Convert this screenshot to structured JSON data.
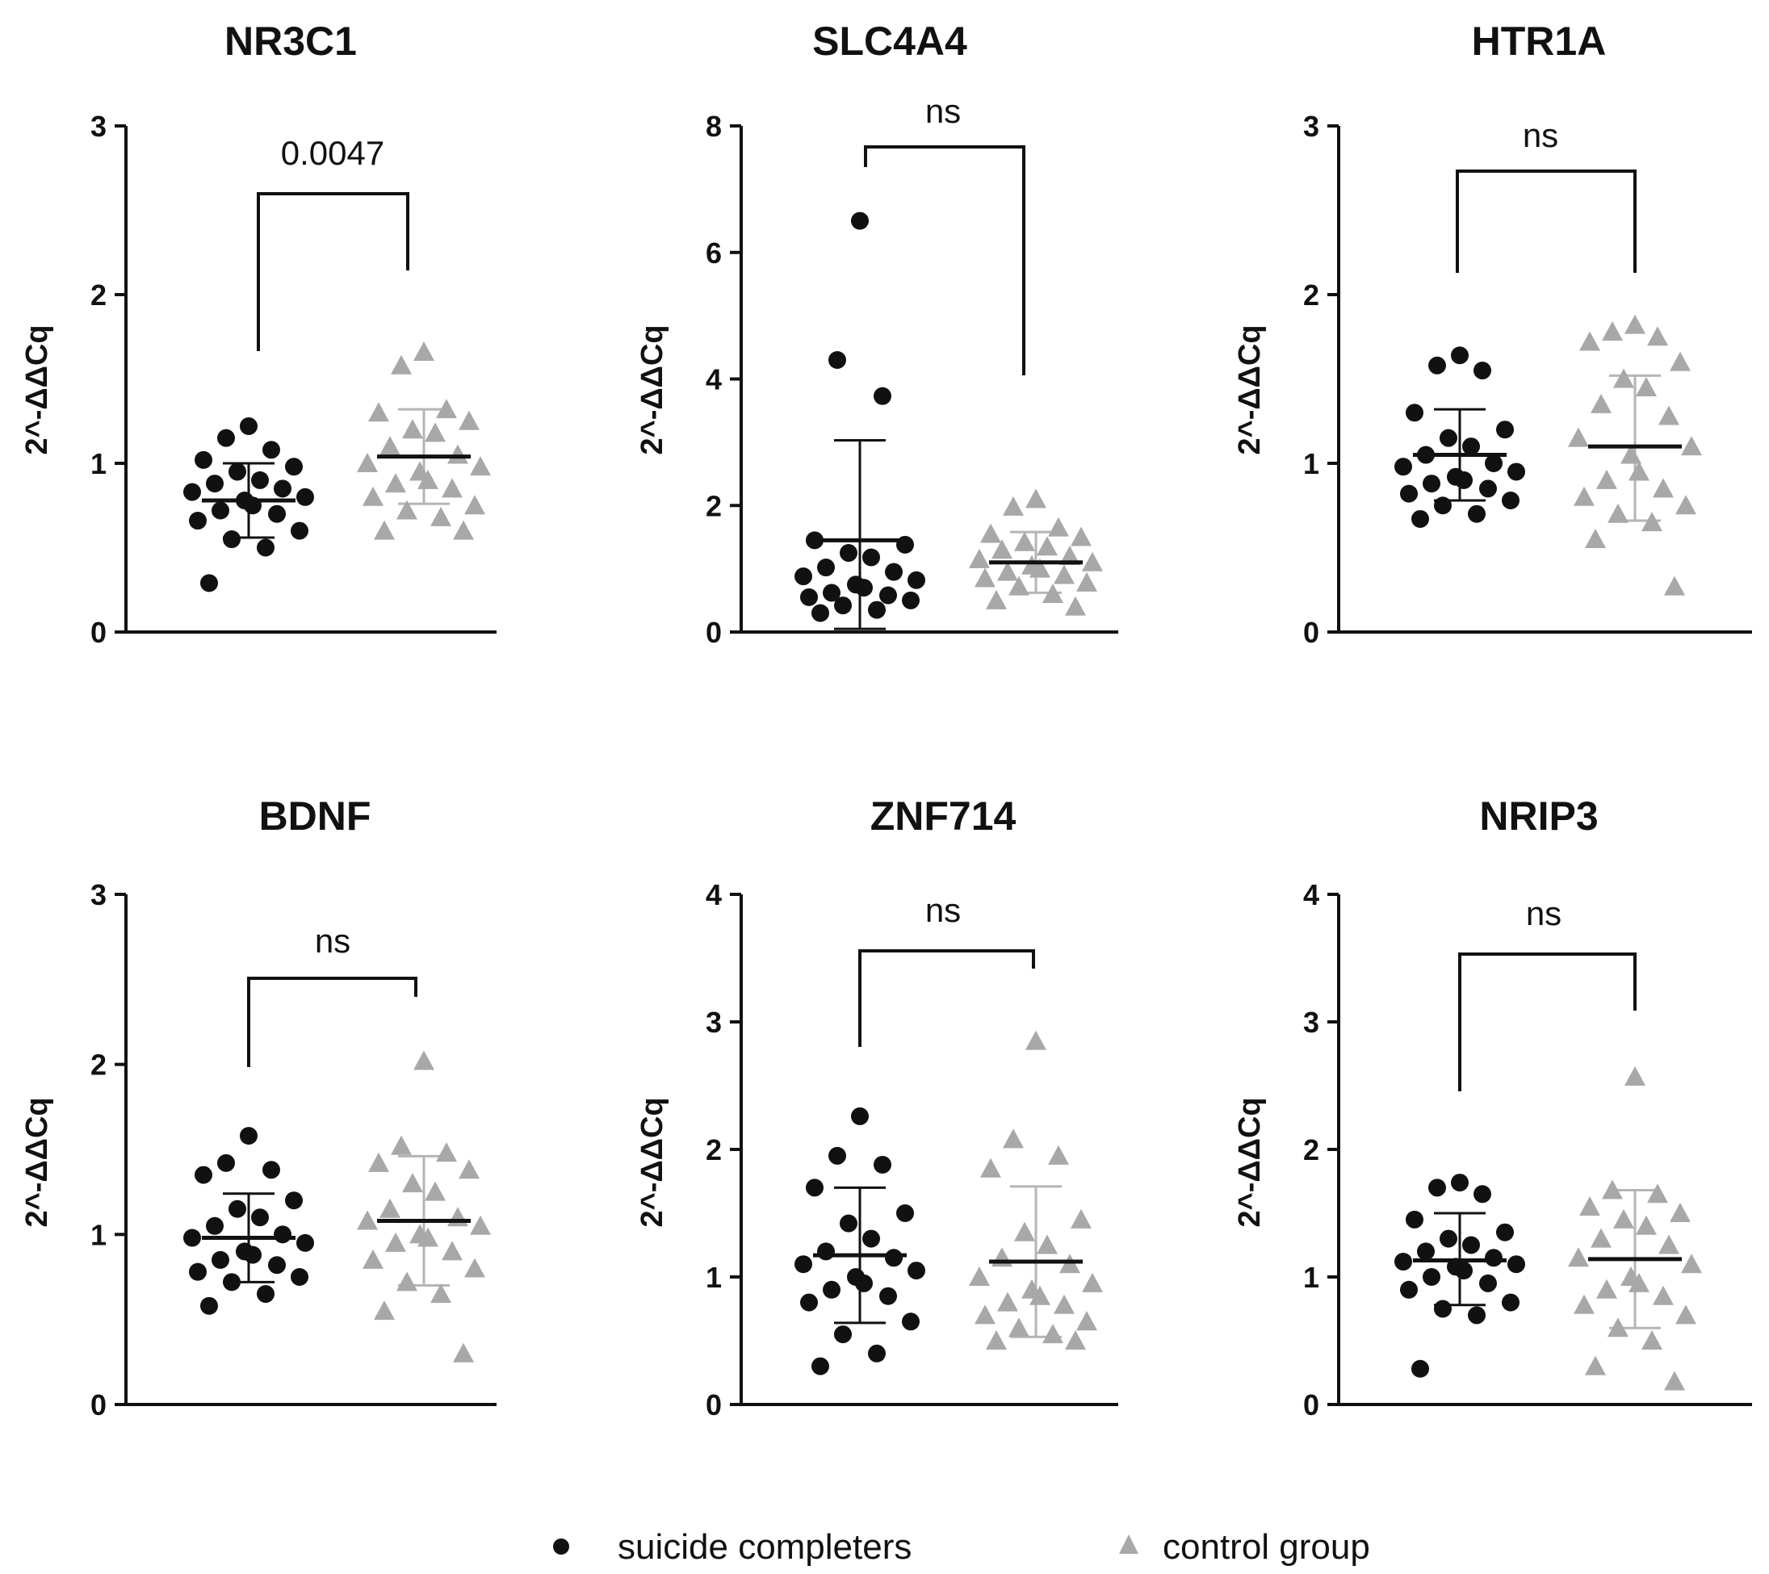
{
  "colors": {
    "suicide": "#111111",
    "control": "#a8a8a8",
    "axis": "#111111"
  },
  "legend": [
    {
      "label": "suicide completers",
      "marker": "circle",
      "color": "#111111"
    },
    {
      "label": "control group",
      "marker": "triangle",
      "color": "#a8a8a8"
    }
  ],
  "chart_data": [
    {
      "type": "scatter",
      "title": "NR3C1",
      "ylabel": "2^-ΔΔCq",
      "ylim": [
        0,
        3
      ],
      "yticks": [
        0,
        1,
        2,
        3
      ],
      "significance": "0.0047",
      "series": [
        {
          "name": "suicide completers",
          "mean": 0.78,
          "sd_low": 0.56,
          "sd_high": 1.0,
          "values": [
            1.22,
            1.15,
            1.08,
            1.02,
            0.98,
            0.95,
            0.9,
            0.88,
            0.85,
            0.83,
            0.8,
            0.78,
            0.75,
            0.72,
            0.7,
            0.66,
            0.6,
            0.55,
            0.5,
            0.29
          ]
        },
        {
          "name": "control group",
          "mean": 1.04,
          "sd_low": 0.76,
          "sd_high": 1.32,
          "values": [
            1.66,
            1.58,
            1.32,
            1.3,
            1.25,
            1.2,
            1.18,
            1.1,
            1.05,
            1.0,
            0.98,
            0.95,
            0.9,
            0.88,
            0.85,
            0.8,
            0.75,
            0.72,
            0.68,
            0.6,
            0.6
          ]
        }
      ]
    },
    {
      "type": "scatter",
      "title": "SLC4A4",
      "ylabel": "2^-ΔΔCq",
      "ylim": [
        0,
        8
      ],
      "yticks": [
        0,
        2,
        4,
        6,
        8
      ],
      "significance": "ns",
      "series": [
        {
          "name": "suicide completers",
          "mean": 1.45,
          "sd_low": 0.05,
          "sd_high": 3.03,
          "values": [
            6.5,
            4.3,
            3.73,
            1.45,
            1.38,
            1.25,
            1.18,
            1.02,
            0.95,
            0.88,
            0.82,
            0.75,
            0.7,
            0.62,
            0.58,
            0.55,
            0.5,
            0.42,
            0.35,
            0.3
          ]
        },
        {
          "name": "control group",
          "mean": 1.1,
          "sd_low": 0.62,
          "sd_high": 1.58,
          "values": [
            2.1,
            1.98,
            1.65,
            1.55,
            1.5,
            1.42,
            1.35,
            1.3,
            1.2,
            1.15,
            1.1,
            1.05,
            1.0,
            0.95,
            0.9,
            0.85,
            0.78,
            0.72,
            0.6,
            0.5,
            0.4
          ]
        }
      ]
    },
    {
      "type": "scatter",
      "title": "HTR1A",
      "ylabel": "2^-ΔΔCq",
      "ylim": [
        0,
        3
      ],
      "yticks": [
        0,
        1,
        2,
        3
      ],
      "significance": "ns",
      "series": [
        {
          "name": "suicide completers",
          "mean": 1.05,
          "sd_low": 0.78,
          "sd_high": 1.32,
          "values": [
            1.64,
            1.58,
            1.55,
            1.3,
            1.2,
            1.15,
            1.1,
            1.05,
            1.0,
            0.98,
            0.95,
            0.92,
            0.9,
            0.88,
            0.85,
            0.82,
            0.78,
            0.75,
            0.7,
            0.67
          ]
        },
        {
          "name": "control group",
          "mean": 1.1,
          "sd_low": 0.66,
          "sd_high": 1.52,
          "values": [
            1.82,
            1.78,
            1.75,
            1.72,
            1.6,
            1.5,
            1.45,
            1.35,
            1.28,
            1.15,
            1.1,
            1.05,
            0.95,
            0.9,
            0.85,
            0.8,
            0.75,
            0.7,
            0.65,
            0.55,
            0.27
          ]
        }
      ]
    },
    {
      "type": "scatter",
      "title": "BDNF",
      "ylabel": "2^-ΔΔCq",
      "ylim": [
        0,
        3
      ],
      "yticks": [
        0,
        1,
        2,
        3
      ],
      "significance": "ns",
      "series": [
        {
          "name": "suicide completers",
          "mean": 0.98,
          "sd_low": 0.72,
          "sd_high": 1.24,
          "values": [
            1.58,
            1.42,
            1.38,
            1.35,
            1.2,
            1.15,
            1.1,
            1.05,
            1.0,
            0.98,
            0.95,
            0.9,
            0.88,
            0.85,
            0.82,
            0.78,
            0.75,
            0.72,
            0.65,
            0.58
          ]
        },
        {
          "name": "control group",
          "mean": 1.08,
          "sd_low": 0.7,
          "sd_high": 1.46,
          "values": [
            2.02,
            1.52,
            1.48,
            1.42,
            1.38,
            1.3,
            1.25,
            1.15,
            1.1,
            1.08,
            1.05,
            1.0,
            0.98,
            0.95,
            0.9,
            0.85,
            0.8,
            0.72,
            0.65,
            0.55,
            0.3
          ]
        }
      ]
    },
    {
      "type": "scatter",
      "title": "ZNF714",
      "ylabel": "2^-ΔΔCq",
      "ylim": [
        0,
        4
      ],
      "yticks": [
        0,
        1,
        2,
        3,
        4
      ],
      "significance": "ns",
      "series": [
        {
          "name": "suicide completers",
          "mean": 1.17,
          "sd_low": 0.64,
          "sd_high": 1.7,
          "values": [
            2.26,
            1.95,
            1.88,
            1.7,
            1.5,
            1.42,
            1.3,
            1.2,
            1.15,
            1.1,
            1.05,
            1.0,
            0.95,
            0.9,
            0.85,
            0.8,
            0.65,
            0.55,
            0.4,
            0.3
          ]
        },
        {
          "name": "control group",
          "mean": 1.12,
          "sd_low": 0.53,
          "sd_high": 1.71,
          "values": [
            2.85,
            2.08,
            1.95,
            1.85,
            1.45,
            1.35,
            1.25,
            1.15,
            1.1,
            1.0,
            0.95,
            0.9,
            0.85,
            0.8,
            0.78,
            0.7,
            0.65,
            0.6,
            0.55,
            0.5,
            0.5
          ]
        }
      ]
    },
    {
      "type": "scatter",
      "title": "NRIP3",
      "ylabel": "2^-ΔΔCq",
      "ylim": [
        0,
        4
      ],
      "yticks": [
        0,
        1,
        2,
        3,
        4
      ],
      "significance": "ns",
      "series": [
        {
          "name": "suicide completers",
          "mean": 1.13,
          "sd_low": 0.78,
          "sd_high": 1.5,
          "values": [
            1.74,
            1.7,
            1.65,
            1.45,
            1.35,
            1.3,
            1.25,
            1.2,
            1.15,
            1.12,
            1.1,
            1.08,
            1.05,
            1.0,
            0.95,
            0.9,
            0.8,
            0.75,
            0.7,
            0.28
          ]
        },
        {
          "name": "control group",
          "mean": 1.14,
          "sd_low": 0.6,
          "sd_high": 1.68,
          "values": [
            2.57,
            1.68,
            1.65,
            1.55,
            1.5,
            1.45,
            1.4,
            1.3,
            1.25,
            1.15,
            1.1,
            1.0,
            0.95,
            0.9,
            0.85,
            0.78,
            0.7,
            0.6,
            0.5,
            0.3,
            0.18
          ]
        }
      ]
    }
  ]
}
